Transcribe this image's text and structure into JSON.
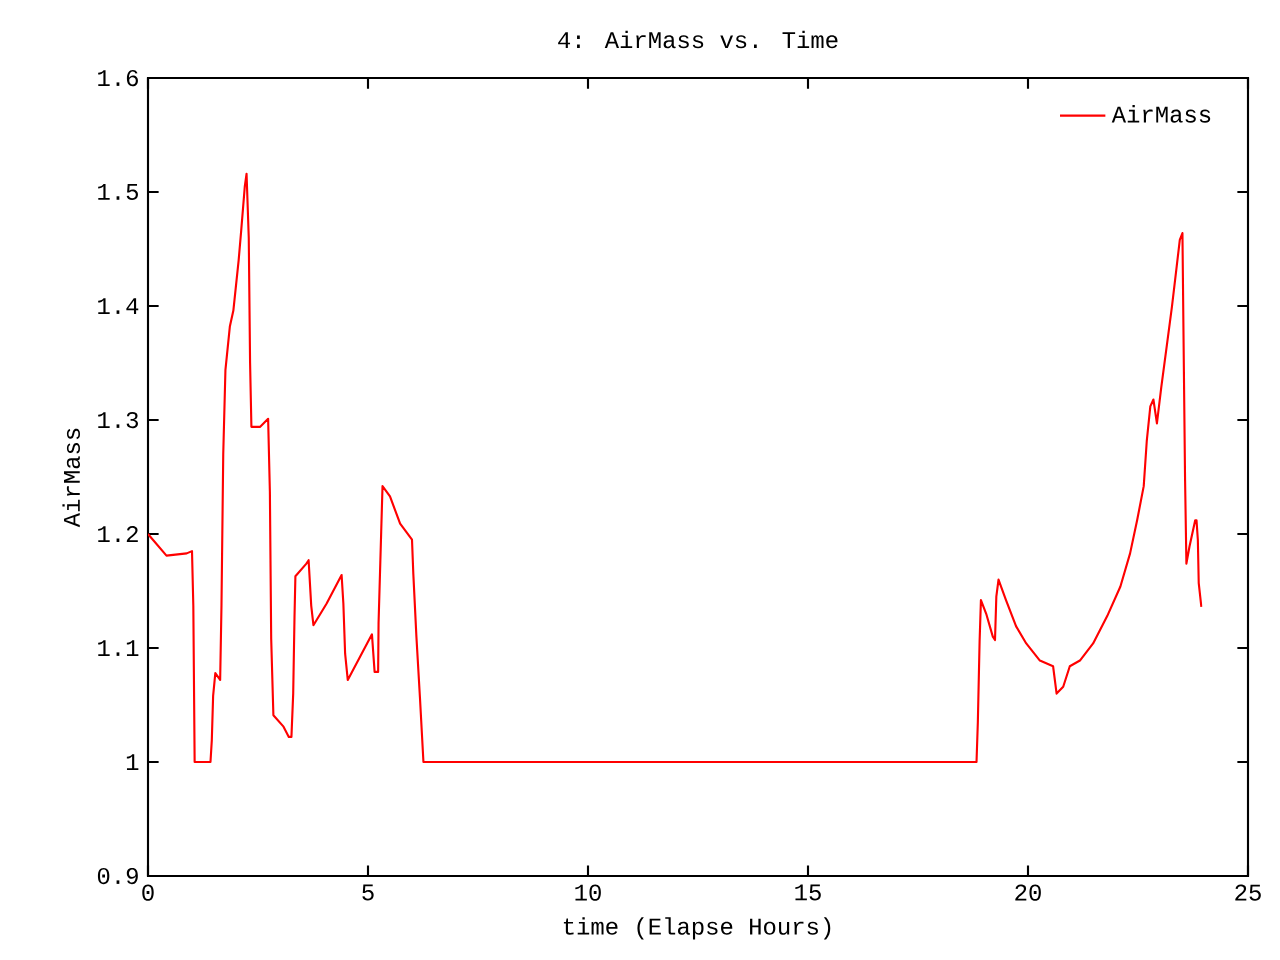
{
  "chart_data": {
    "type": "line",
    "title": "4: AirMass vs. Time",
    "xlabel": "time (Elapse Hours)",
    "ylabel": "AirMass",
    "x": [
      0,
      0.42,
      0.88,
      1.0,
      1.03,
      1.05,
      1.06,
      1.42,
      1.45,
      1.48,
      1.53,
      1.64,
      1.67,
      1.71,
      1.76,
      1.86,
      1.94,
      2.06,
      2.12,
      2.2,
      2.24,
      2.29,
      2.32,
      2.35,
      2.55,
      2.73,
      2.77,
      2.8,
      2.85,
      3.08,
      3.2,
      3.26,
      3.3,
      3.33,
      3.35,
      3.6,
      3.65,
      3.71,
      3.76,
      4.06,
      4.4,
      4.44,
      4.48,
      4.54,
      5.09,
      5.15,
      5.23,
      5.24,
      5.3,
      5.33,
      5.5,
      5.73,
      6.0,
      6.03,
      6.1,
      6.18,
      6.26,
      10,
      15,
      18.83,
      18.86,
      18.9,
      18.93,
      19.05,
      19.2,
      19.25,
      19.28,
      19.33,
      19.5,
      19.73,
      19.96,
      20.27,
      20.57,
      20.65,
      20.8,
      20.95,
      21.18,
      21.48,
      21.8,
      22.1,
      22.32,
      22.48,
      22.63,
      22.7,
      22.78,
      22.85,
      22.93,
      23.03,
      23.15,
      23.27,
      23.38,
      23.45,
      23.51,
      23.53,
      23.57,
      23.6,
      23.67,
      23.8,
      23.83,
      23.86,
      23.88,
      23.94
    ],
    "series": [
      {
        "name": "AirMass",
        "color": "#ff0000",
        "values": [
          1.2,
          1.181,
          1.183,
          1.185,
          1.137,
          1.046,
          1.0,
          1.0,
          1.019,
          1.058,
          1.078,
          1.072,
          1.137,
          1.27,
          1.344,
          1.382,
          1.396,
          1.44,
          1.467,
          1.505,
          1.516,
          1.46,
          1.35,
          1.294,
          1.294,
          1.301,
          1.237,
          1.108,
          1.041,
          1.031,
          1.022,
          1.022,
          1.06,
          1.128,
          1.163,
          1.174,
          1.177,
          1.137,
          1.12,
          1.139,
          1.164,
          1.139,
          1.095,
          1.072,
          1.112,
          1.079,
          1.079,
          1.122,
          1.202,
          1.242,
          1.233,
          1.209,
          1.195,
          1.165,
          1.11,
          1.057,
          1.0,
          1.0,
          1.0,
          1.0,
          1.035,
          1.106,
          1.142,
          1.13,
          1.11,
          1.107,
          1.145,
          1.16,
          1.142,
          1.119,
          1.104,
          1.089,
          1.084,
          1.06,
          1.066,
          1.084,
          1.089,
          1.104,
          1.128,
          1.154,
          1.183,
          1.212,
          1.242,
          1.282,
          1.312,
          1.318,
          1.297,
          1.329,
          1.364,
          1.399,
          1.435,
          1.458,
          1.464,
          1.39,
          1.247,
          1.174,
          1.189,
          1.212,
          1.212,
          1.195,
          1.157,
          1.136
        ]
      }
    ],
    "xlim": [
      0,
      25
    ],
    "ylim": [
      0.9,
      1.6
    ],
    "xticks": [
      0,
      5,
      10,
      15,
      20,
      25
    ],
    "yticks": [
      0.9,
      1,
      1.1,
      1.2,
      1.3,
      1.4,
      1.5,
      1.6
    ],
    "grid": false,
    "legend": "top right",
    "marker": "none",
    "line_style": "solid"
  }
}
